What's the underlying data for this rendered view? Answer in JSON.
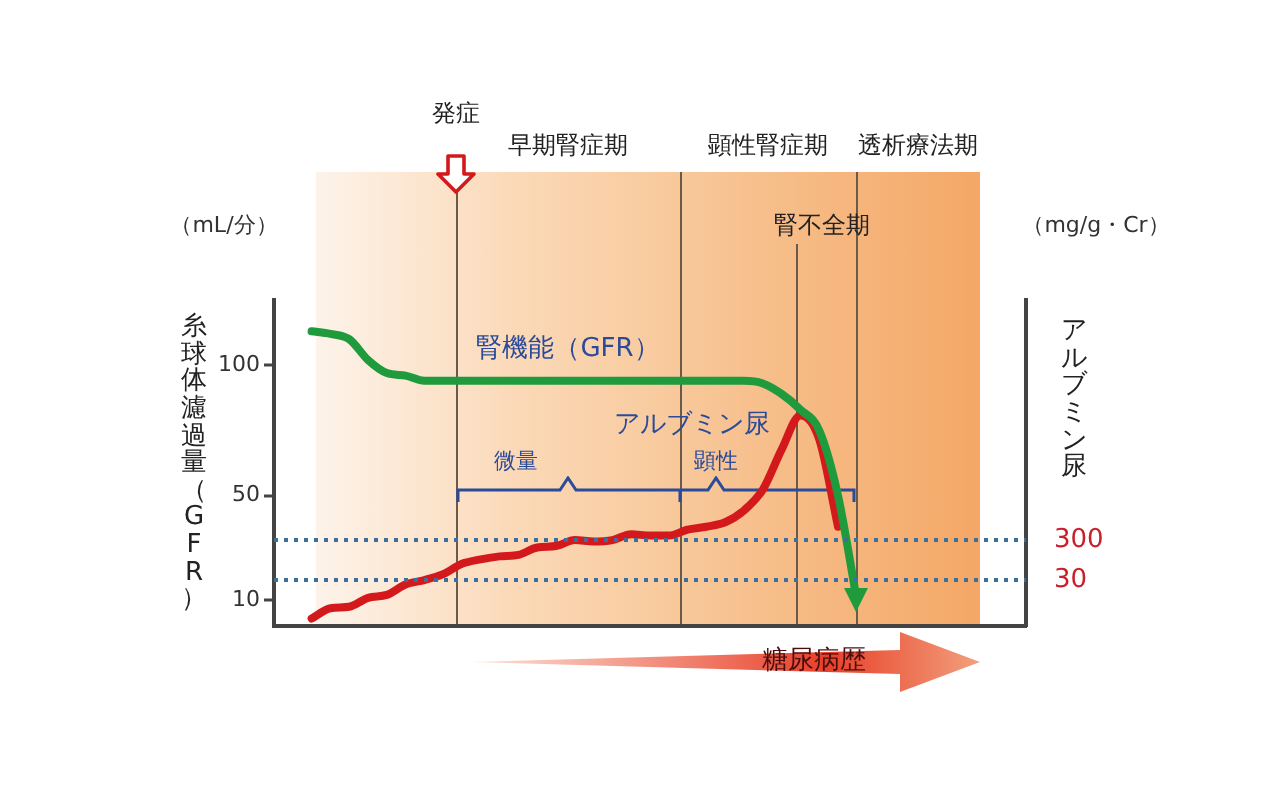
{
  "chart_data": {
    "type": "line",
    "ylabel": "糸球体濾過量（GFR）",
    "y2label": "アルブミン尿",
    "annotations": [
      "（mL/分）",
      "（mg/g・Cr）",
      "発症",
      "早期腎症期",
      "顕性腎症期",
      "透析療法期",
      "腎不全期",
      "微量",
      "顕性",
      "糖尿病歴"
    ],
    "categories": [
      null,
      null,
      null,
      null,
      null,
      null,
      null,
      null,
      null,
      null,
      null,
      null,
      null,
      null,
      null,
      null,
      null,
      null,
      null,
      null,
      null,
      null,
      null,
      null,
      null,
      null,
      null,
      null,
      null,
      null,
      null,
      null,
      null,
      null,
      null,
      null,
      null,
      null,
      null,
      null,
      null
    ],
    "series": [
      {
        "name": "腎機能（GFR）",
        "color": "#1f9a3c",
        "values": [
          null,
          null,
          113,
          112,
          110,
          102,
          97,
          96,
          94,
          94,
          94,
          94,
          94,
          94,
          94,
          94,
          94,
          94,
          94,
          94,
          94,
          94,
          94,
          94,
          94,
          94,
          93,
          89,
          83,
          75,
          50,
          10,
          null,
          null,
          null,
          null,
          null,
          null,
          null,
          null,
          null
        ]
      },
      {
        "name": "アルブミン尿",
        "color": "#d3191c",
        "axis": "y2",
        "values": [
          null,
          null,
          -230,
          -160,
          -150,
          -90,
          -70,
          0,
          30,
          70,
          140,
          170,
          190,
          200,
          250,
          260,
          300,
          290,
          300,
          340,
          330,
          330,
          370,
          390,
          420,
          500,
          640,
          910,
          1140,
          980,
          390,
          null,
          null,
          null,
          null,
          null,
          null,
          null,
          null,
          null,
          null
        ]
      }
    ],
    "ylim": [
      0,
      125
    ],
    "yticks": [
      10,
      50,
      100
    ],
    "y2lim": [
      -280,
      1920
    ],
    "y2ticks": [
      30,
      300
    ],
    "ref_lines": [
      {
        "axis": "y2",
        "value": 300,
        "color": "#3d6f9c",
        "line_style": "dotted"
      },
      {
        "axis": "y2",
        "value": 30,
        "color": "#3d6f9c",
        "line_style": "dotted"
      }
    ],
    "grid": false,
    "legend": false,
    "marker": "none",
    "line_style": "solid"
  }
}
